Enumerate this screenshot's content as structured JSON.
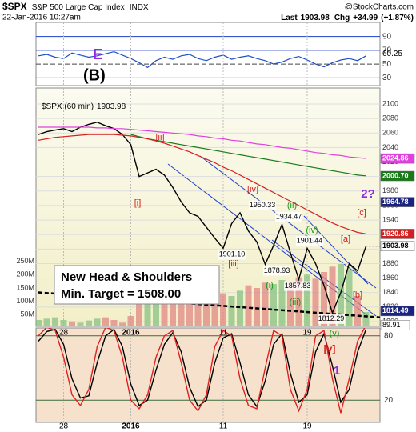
{
  "header": {
    "symbol": "$SPX",
    "name": "S&P 500 Large Cap Index",
    "exchange": "INDX",
    "date": "22-Jan-2016 10:27am",
    "source": "@StockCharts.com",
    "last_label": "Last",
    "last": 1903.98,
    "chg_label": "Chg",
    "chg": {
      "value": 34.99,
      "label": "+34.99"
    },
    "chg_pct": {
      "value": 1.87,
      "label": "(+1.87%)"
    }
  },
  "chart_data": [
    {
      "type": "line",
      "ylim": [
        20,
        100
      ],
      "yticks": [
        90,
        70,
        50,
        30
      ],
      "color": "#1f4fc8",
      "current": 60.25,
      "annotations": [
        {
          "text": "(B)",
          "color": "#000000"
        },
        {
          "text": "E",
          "color": "#8a2be2"
        }
      ],
      "values": [
        62,
        64,
        60,
        58,
        66,
        63,
        60,
        62,
        65,
        68,
        63,
        58,
        52,
        45,
        55,
        60,
        57,
        62,
        64,
        58,
        55,
        60,
        63,
        57,
        60,
        62,
        58,
        55,
        50,
        53,
        58,
        61,
        56,
        50,
        46,
        52,
        56,
        58,
        55,
        62
      ]
    },
    {
      "type": "ohlc",
      "legend_text": "$SPX (60 min)",
      "last": 1903.98,
      "categories": [
        null,
        null,
        null,
        "28",
        null,
        null,
        null,
        null,
        null,
        null,
        null,
        "2016",
        null,
        null,
        null,
        null,
        null,
        null,
        null,
        null,
        null,
        null,
        "11",
        null,
        null,
        null,
        null,
        null,
        null,
        null,
        null,
        null,
        "19",
        null,
        null,
        null,
        null,
        null,
        null,
        null
      ],
      "ylim": [
        1800,
        2100
      ],
      "yticks": [
        1800,
        1820,
        1840,
        1860,
        1880,
        1900,
        1920,
        1940,
        1960,
        1980,
        2000,
        2020,
        2040,
        2060,
        2080,
        2100
      ],
      "y2lim": [
        0,
        840000000
      ],
      "y2ticks": [
        {
          "value": 50000000,
          "label": "50M"
        },
        {
          "value": 100000000,
          "label": "100M"
        },
        {
          "value": 150000000,
          "label": "150M"
        },
        {
          "value": 200000000,
          "label": "200M"
        },
        {
          "value": 250000000,
          "label": "250M"
        }
      ],
      "grid": true,
      "series": [
        {
          "color": "#000000",
          "values": [
            2058,
            2062,
            2064,
            2066,
            2062,
            2068,
            2072,
            2075,
            2070,
            2066,
            2058,
            2044,
            2000,
            2005,
            2010,
            2002,
            1985,
            1965,
            1950,
            1945,
            1930,
            1915,
            1901,
            1935,
            1950,
            1925,
            1910,
            1879,
            1905,
            1934,
            1895,
            1858,
            1901,
            1880,
            1850,
            1812,
            1840,
            1880,
            1870,
            1904
          ]
        },
        {
          "color": "#e040e0",
          "values": [
            2068,
            2068,
            2068,
            2068,
            2068,
            2068,
            2068,
            2067,
            2067,
            2066,
            2066,
            2065,
            2064,
            2063,
            2062,
            2061,
            2060,
            2059,
            2058,
            2056,
            2055,
            2053,
            2052,
            2050,
            2049,
            2047,
            2045,
            2044,
            2042,
            2040,
            2039,
            2037,
            2035,
            2033,
            2032,
            2030,
            2029,
            2027,
            2026,
            2025
          ]
        },
        {
          "color": "#1a7a1a",
          "values": [
            null,
            null,
            null,
            null,
            null,
            null,
            null,
            null,
            null,
            null,
            null,
            2058,
            2055,
            2052,
            2050,
            2048,
            2046,
            2044,
            2042,
            2040,
            2038,
            2036,
            2034,
            2032,
            2030,
            2028,
            2026,
            2024,
            2022,
            2020,
            2018,
            2016,
            2014,
            2012,
            2010,
            2008,
            2006,
            2004,
            2002,
            2001
          ]
        },
        {
          "color": "#d42020",
          "values": [
            2050,
            2052,
            2054,
            2055,
            2056,
            2057,
            2058,
            2058,
            2058,
            2058,
            2057,
            2056,
            2054,
            2052,
            2049,
            2046,
            2042,
            2038,
            2034,
            2029,
            2024,
            2019,
            2013,
            2008,
            2002,
            1996,
            1990,
            1984,
            1978,
            1972,
            1966,
            1960,
            1954,
            1948,
            1942,
            1936,
            1931,
            1927,
            1923,
            1921
          ]
        },
        {
          "axis": "y2",
          "up_color": "#7fbf7f",
          "down_color": "#e08080",
          "values": [
            30000000,
            35000000,
            40000000,
            30000000,
            25000000,
            20000000,
            28000000,
            35000000,
            40000000,
            30000000,
            20000000,
            45000000,
            90000000,
            110000000,
            100000000,
            95000000,
            120000000,
            130000000,
            115000000,
            125000000,
            150000000,
            140000000,
            130000000,
            120000000,
            140000000,
            160000000,
            150000000,
            170000000,
            165000000,
            180000000,
            175000000,
            190000000,
            200000000,
            185000000,
            210000000,
            230000000,
            240000000,
            220000000,
            120000000,
            60000000
          ]
        }
      ],
      "ma_labels": [
        {
          "value": 2024.86,
          "label": "2024.86",
          "color": "#e040e0"
        },
        {
          "value": 2000.7,
          "label": "2000.70",
          "color": "#1a7a1a"
        },
        {
          "value": 1964.78,
          "label": "1964.78",
          "color": "#1a237e"
        },
        {
          "value": 1920.86,
          "label": "1920.86",
          "color": "#d42020"
        },
        {
          "value": 1903.98,
          "label": "1903.98",
          "color": "#ffffff"
        },
        {
          "value": 1814.49,
          "label": "1814.49",
          "color": "#1a237e"
        }
      ],
      "point_labels": [
        1950.33,
        1934.47,
        1901.44,
        1901.1,
        1878.93,
        1857.83,
        1812.29
      ],
      "point_label_texts": [
        "1950.33",
        "1934.47",
        "1901.44",
        "1901.10",
        "1878.93",
        "1857.83",
        "1812.29"
      ],
      "annotations": [
        {
          "text": "[ii]",
          "color": "#d42020"
        },
        {
          "text": "[i]",
          "color": "#d42020"
        },
        {
          "text": "[iv]",
          "color": "#d42020"
        },
        {
          "text": "[iii]",
          "color": "#d42020"
        },
        {
          "text": "(ii)",
          "color": "#1a9a1a"
        },
        {
          "text": "(iv)",
          "color": "#1a9a1a"
        },
        {
          "text": "(i)",
          "color": "#1a9a1a"
        },
        {
          "text": "(iii)",
          "color": "#1a9a1a"
        },
        {
          "text": "(v)",
          "color": "#1a9a1a"
        },
        {
          "text": "[a]",
          "color": "#d42020"
        },
        {
          "text": "[b]",
          "color": "#d42020"
        },
        {
          "text": "[c]",
          "color": "#d42020"
        },
        {
          "text": "2?",
          "color": "#8a2be2"
        }
      ],
      "note": [
        "New Head & Shoulders",
        "Min. Target = 1508.00"
      ]
    },
    {
      "type": "line",
      "categories": [
        null,
        null,
        null,
        "28",
        null,
        null,
        null,
        null,
        null,
        null,
        null,
        "2016",
        null,
        null,
        null,
        null,
        null,
        null,
        null,
        null,
        null,
        null,
        "11",
        null,
        null,
        null,
        null,
        null,
        null,
        null,
        null,
        null,
        "19",
        null,
        null,
        null,
        null,
        null,
        null,
        null
      ],
      "ylim": [
        0,
        100
      ],
      "yticks": [
        20,
        80
      ],
      "current": 89.91,
      "annotations": [
        {
          "text": "[v]",
          "color": "#d42020"
        },
        {
          "text": "1",
          "color": "#8a2be2"
        }
      ],
      "series": [
        {
          "color": "#000000",
          "values": [
            75,
            84,
            86,
            72,
            40,
            22,
            24,
            55,
            80,
            86,
            70,
            35,
            15,
            20,
            48,
            72,
            83,
            65,
            32,
            14,
            20,
            55,
            78,
            82,
            55,
            25,
            14,
            38,
            72,
            82,
            45,
            18,
            25,
            65,
            82,
            52,
            18,
            30,
            65,
            86
          ]
        },
        {
          "color": "#e02020",
          "values": [
            80,
            88,
            85,
            60,
            25,
            15,
            30,
            70,
            88,
            85,
            60,
            20,
            12,
            25,
            60,
            80,
            85,
            55,
            20,
            10,
            25,
            70,
            85,
            80,
            40,
            15,
            12,
            50,
            85,
            80,
            30,
            10,
            30,
            80,
            85,
            40,
            8,
            40,
            75,
            90
          ]
        }
      ]
    }
  ]
}
